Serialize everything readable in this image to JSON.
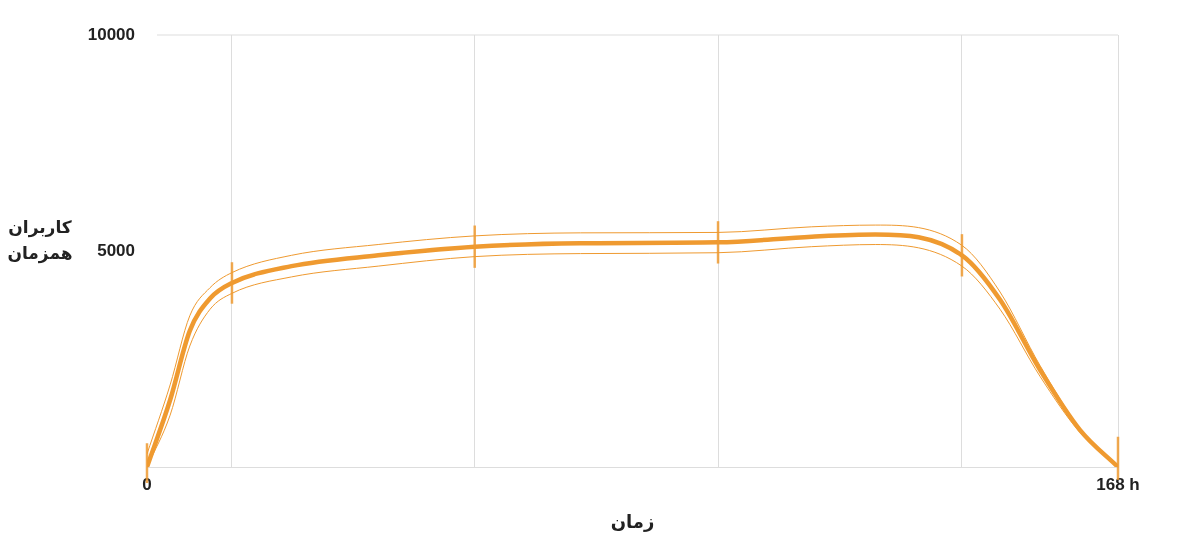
{
  "chart_data": {
    "type": "line",
    "xlabel": "زمان",
    "ylabel": "کاربران\nهمزمان",
    "x": [
      0,
      4,
      7.4,
      10.9,
      14.7,
      25,
      40,
      56.7,
      75,
      98.8,
      115,
      126,
      141,
      147.6,
      154.5,
      161.4,
      168
    ],
    "series": [
      {
        "color": "#ef9a30",
        "values": [
          0,
          1550,
          3150,
          3900,
          4260,
          4650,
          4900,
          5100,
          5180,
          5200,
          5330,
          5380,
          4900,
          3870,
          2250,
          860,
          0
        ],
        "errors": [
          [
            -370,
            550
          ],
          null,
          null,
          null,
          480,
          null,
          null,
          490,
          null,
          490,
          null,
          null,
          490,
          null,
          null,
          null,
          [
            -300,
            700
          ]
        ]
      },
      {
        "color": "#ef9a30",
        "values": [
          300,
          1900,
          3500,
          4150,
          4500,
          4900,
          5150,
          5350,
          5420,
          5430,
          5560,
          5600,
          5130,
          4050,
          2350,
          900,
          0
        ]
      },
      {
        "color": "#ef9a30",
        "values": [
          0,
          1200,
          2800,
          3650,
          4020,
          4400,
          4650,
          4870,
          4940,
          4960,
          5100,
          5150,
          4650,
          3650,
          2100,
          800,
          0
        ]
      }
    ],
    "xlim": [
      0,
      168
    ],
    "xticks": [
      {
        "value": 0,
        "label": "0"
      },
      {
        "value": 14.7,
        "label": null
      },
      {
        "value": 56.7,
        "label": null
      },
      {
        "value": 98.8,
        "label": null
      },
      {
        "value": 141,
        "label": null
      },
      {
        "value": 168,
        "label": "168 h"
      }
    ],
    "ylim": [
      0,
      10000
    ],
    "yticks": [
      5000,
      10000
    ],
    "grid": "x",
    "legend": false,
    "marker": "none",
    "line_style": "solid"
  }
}
